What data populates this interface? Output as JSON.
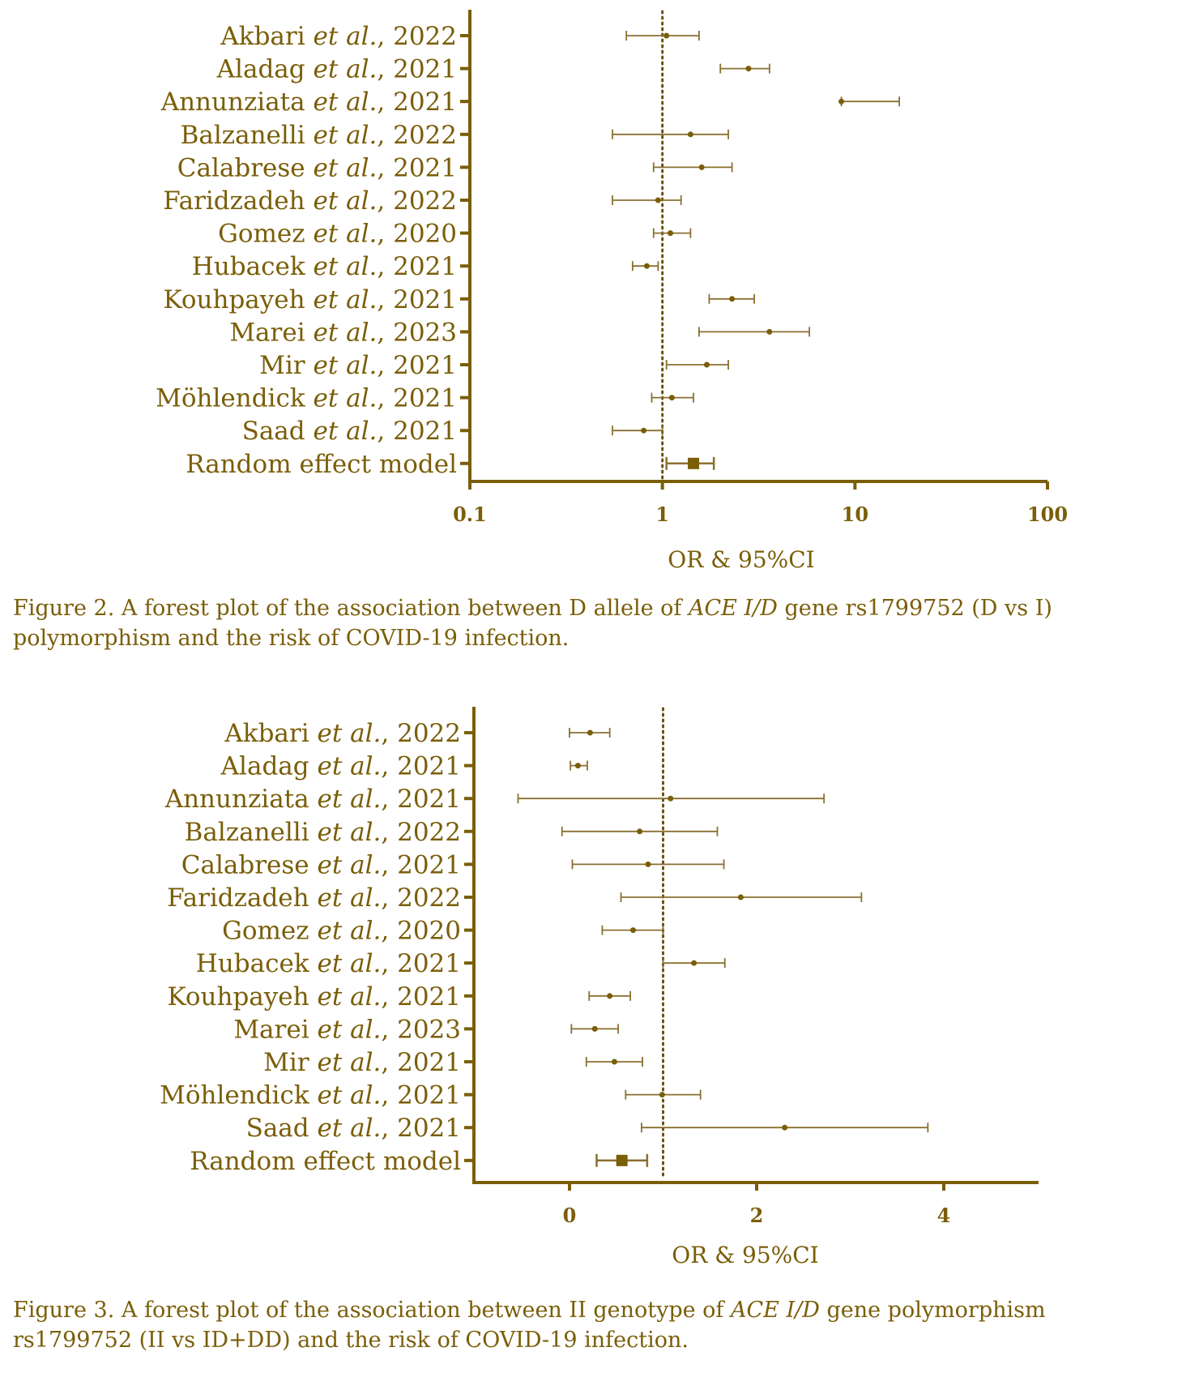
{
  "colors": {
    "ink": "#7a5e08",
    "axis": "#7a5e08",
    "whisker": "#8a7030",
    "point": "#7a5e08",
    "ref_line": "#6b5010"
  },
  "chart_data": [
    {
      "type": "forest",
      "figure_label": "Figure 2.",
      "caption_before": "A forest plot of the association between D allele of ",
      "caption_italic": "ACE I/D",
      "caption_after": " gene rs1799752 (D vs I) polymorphism and the risk of COVID-19 infection.",
      "xlabel": "OR & 95%CI",
      "xscale": "log",
      "xlim": [
        0.1,
        100
      ],
      "xticks": [
        0.1,
        1,
        10,
        100
      ],
      "xtick_labels": [
        "0.1",
        "1",
        "10",
        "100"
      ],
      "reference_line": 1,
      "rows": [
        {
          "author": "Akbari",
          "etal": "et al.",
          "year": ", 2022",
          "or": 1.05,
          "lo": 0.65,
          "hi": 1.55
        },
        {
          "author": "Aladag",
          "etal": "et al.",
          "year": ", 2021",
          "or": 2.8,
          "lo": 2.0,
          "hi": 3.6
        },
        {
          "author": "Annunziata",
          "etal": "et al.",
          "year": ", 2021",
          "or": 8.5,
          "lo": 8.5,
          "hi": 17.0
        },
        {
          "author": "Balzanelli",
          "etal": "et al.",
          "year": ", 2022",
          "or": 1.4,
          "lo": 0.55,
          "hi": 2.2
        },
        {
          "author": "Calabrese",
          "etal": "et al.",
          "year": ", 2021",
          "or": 1.6,
          "lo": 0.9,
          "hi": 2.3
        },
        {
          "author": "Faridzadeh",
          "etal": "et al.",
          "year": ", 2022",
          "or": 0.95,
          "lo": 0.55,
          "hi": 1.25
        },
        {
          "author": "Gomez",
          "etal": "et al.",
          "year": ", 2020",
          "or": 1.1,
          "lo": 0.9,
          "hi": 1.4
        },
        {
          "author": "Hubacek",
          "etal": "et al.",
          "year": ", 2021",
          "or": 0.83,
          "lo": 0.7,
          "hi": 0.95
        },
        {
          "author": "Kouhpayeh",
          "etal": "et al.",
          "year": ", 2021",
          "or": 2.3,
          "lo": 1.75,
          "hi": 3.0
        },
        {
          "author": "Marei",
          "etal": "et al.",
          "year": ", 2023",
          "or": 3.6,
          "lo": 1.55,
          "hi": 5.8
        },
        {
          "author": "Mir",
          "etal": "et al.",
          "year": ", 2021",
          "or": 1.7,
          "lo": 1.05,
          "hi": 2.2
        },
        {
          "author": "Möhlendick",
          "etal": "et al.",
          "year": ", 2021",
          "or": 1.12,
          "lo": 0.88,
          "hi": 1.45
        },
        {
          "author": "Saad",
          "etal": "et al.",
          "year": ", 2021",
          "or": 0.8,
          "lo": 0.55,
          "hi": 1.0
        },
        {
          "author": "Random effect model",
          "etal": "",
          "year": "",
          "or": 1.45,
          "lo": 1.05,
          "hi": 1.85,
          "pooled": true
        }
      ]
    },
    {
      "type": "forest",
      "figure_label": "Figure 3.",
      "caption_before": "A forest plot of the association between II genotype of ",
      "caption_italic": "ACE I/D",
      "caption_after": " gene polymorphism rs1799752 (II vs ID+DD) and the risk of COVID-19 infection.",
      "xlabel": "OR & 95%CI",
      "xscale": "linear",
      "xlim": [
        -1,
        5
      ],
      "xticks": [
        0,
        2,
        4
      ],
      "xtick_labels": [
        "0",
        "2",
        "4"
      ],
      "reference_line": 1,
      "rows": [
        {
          "author": "Akbari",
          "etal": "et al.",
          "year": ", 2022",
          "or": 0.22,
          "lo": 0.0,
          "hi": 0.43
        },
        {
          "author": "Aladag",
          "etal": "et al.",
          "year": ", 2021",
          "or": 0.09,
          "lo": 0.01,
          "hi": 0.19
        },
        {
          "author": "Annunziata",
          "etal": "et al.",
          "year": ", 2021",
          "or": 1.08,
          "lo": -0.55,
          "hi": 2.72
        },
        {
          "author": "Balzanelli",
          "etal": "et al.",
          "year": ", 2022",
          "or": 0.75,
          "lo": -0.08,
          "hi": 1.58
        },
        {
          "author": "Calabrese",
          "etal": "et al.",
          "year": ", 2021",
          "or": 0.84,
          "lo": 0.03,
          "hi": 1.65
        },
        {
          "author": "Faridzadeh",
          "etal": "et al.",
          "year": ", 2022",
          "or": 1.83,
          "lo": 0.55,
          "hi": 3.12
        },
        {
          "author": "Gomez",
          "etal": "et al.",
          "year": ", 2020",
          "or": 0.68,
          "lo": 0.35,
          "hi": 1.0
        },
        {
          "author": "Hubacek",
          "etal": "et al.",
          "year": ", 2021",
          "or": 1.33,
          "lo": 1.0,
          "hi": 1.66
        },
        {
          "author": "Kouhpayeh",
          "etal": "et al.",
          "year": ", 2021",
          "or": 0.43,
          "lo": 0.21,
          "hi": 0.65
        },
        {
          "author": "Marei",
          "etal": "et al.",
          "year": ", 2023",
          "or": 0.27,
          "lo": 0.02,
          "hi": 0.52
        },
        {
          "author": "Mir",
          "etal": "et al.",
          "year": ", 2021",
          "or": 0.48,
          "lo": 0.18,
          "hi": 0.78
        },
        {
          "author": "Möhlendick",
          "etal": "et al.",
          "year": ", 2021",
          "or": 0.99,
          "lo": 0.6,
          "hi": 1.4
        },
        {
          "author": "Saad",
          "etal": "et al.",
          "year": ", 2021",
          "or": 2.3,
          "lo": 0.77,
          "hi": 3.83
        },
        {
          "author": "Random effect model",
          "etal": "",
          "year": "",
          "or": 0.56,
          "lo": 0.29,
          "hi": 0.83,
          "pooled": true
        }
      ]
    }
  ]
}
